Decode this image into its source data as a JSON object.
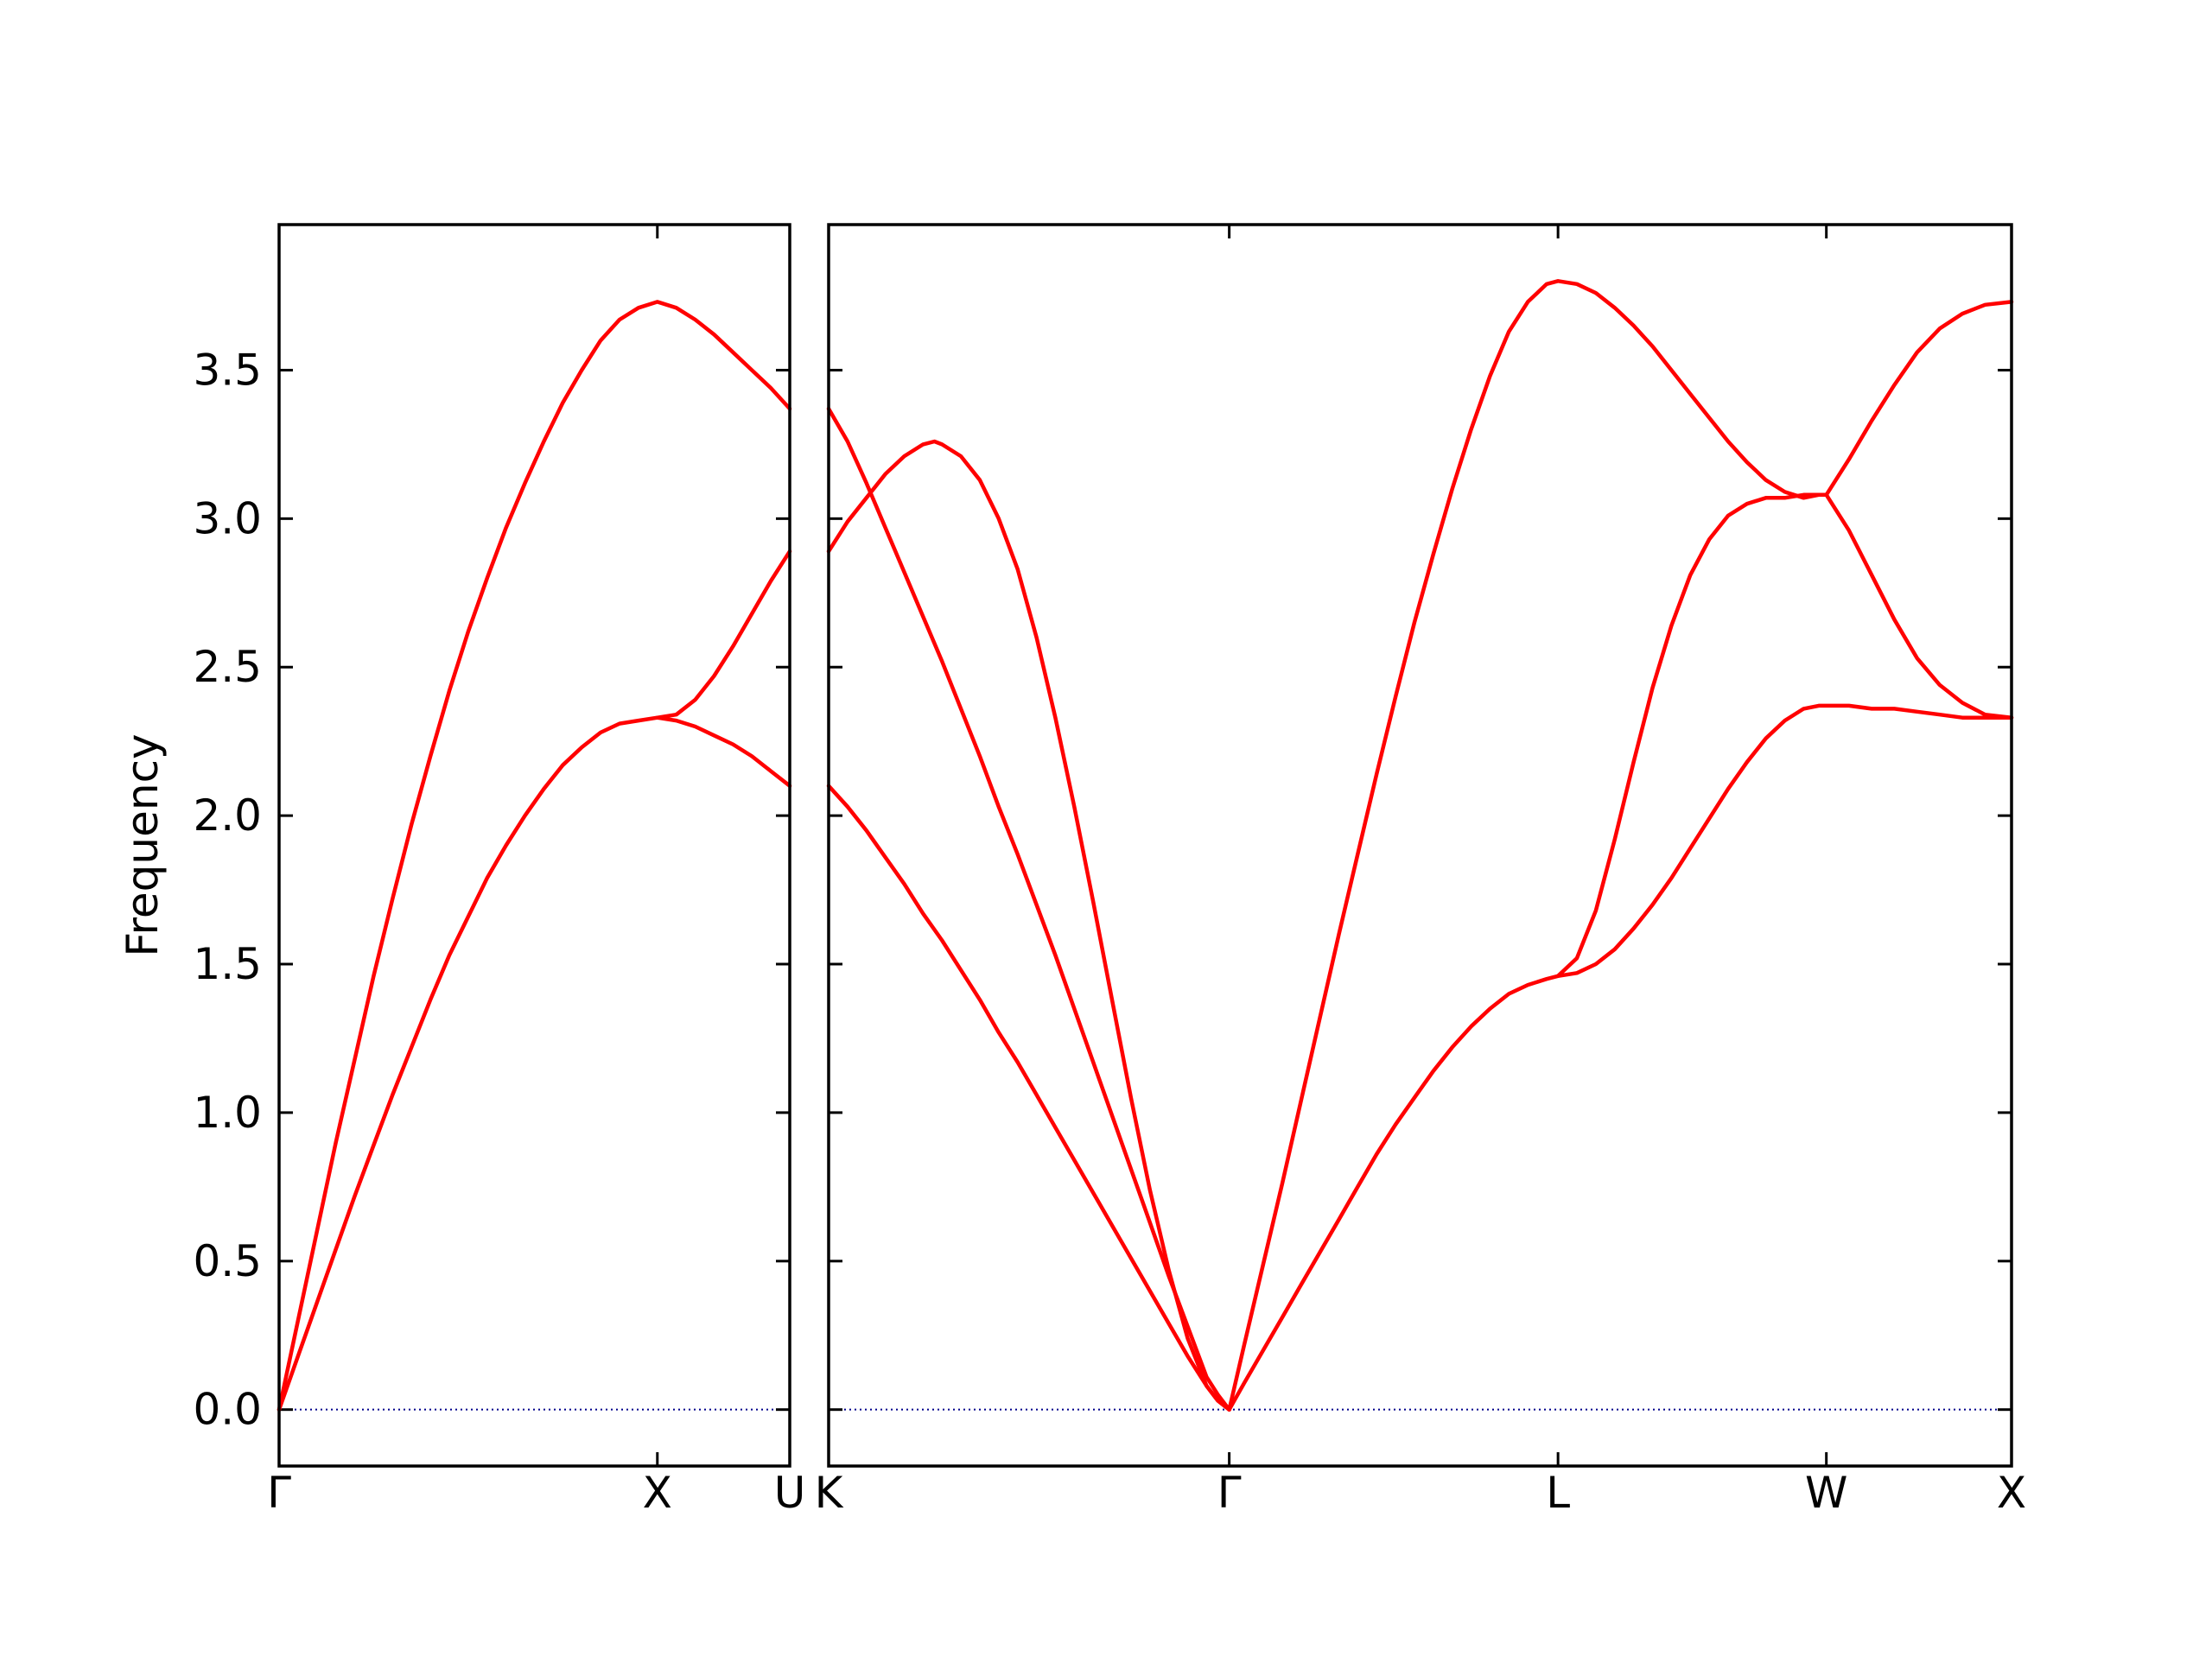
{
  "chart_data": {
    "type": "line",
    "ylabel": "Frequency",
    "ylim": [
      -0.19,
      3.99
    ],
    "yticks": [
      0.0,
      0.5,
      1.0,
      1.5,
      2.0,
      2.5,
      3.0,
      3.5
    ],
    "ytick_labels": [
      "0.0",
      "0.5",
      "1.0",
      "1.5",
      "2.0",
      "2.5",
      "3.0",
      "3.5"
    ],
    "grid": false,
    "line_color": "#ff0000",
    "zero_line_color": "#00008b",
    "panels": [
      {
        "xlim": [
          0,
          1.35
        ],
        "xticks": [
          0,
          1.0,
          1.35
        ],
        "xtick_labels": [
          "Γ",
          "X",
          "U"
        ],
        "series": [
          {
            "x": [
              0,
              0.05,
              0.1,
              0.15,
              0.2,
              0.25,
              0.3,
              0.35,
              0.4,
              0.45,
              0.5,
              0.55,
              0.6,
              0.65,
              0.7,
              0.75,
              0.8,
              0.85,
              0.9,
              0.95,
              1.0,
              1.05,
              1.1,
              1.15,
              1.2,
              1.25,
              1.3,
              1.35
            ],
            "y": [
              0,
              0.3,
              0.6,
              0.9,
              1.18,
              1.46,
              1.72,
              1.97,
              2.2,
              2.42,
              2.62,
              2.8,
              2.97,
              3.12,
              3.26,
              3.39,
              3.5,
              3.6,
              3.67,
              3.71,
              3.73,
              3.71,
              3.67,
              3.62,
              3.56,
              3.5,
              3.44,
              3.37
            ]
          },
          {
            "x": [
              0,
              0.05,
              0.1,
              0.15,
              0.2,
              0.25,
              0.3,
              0.35,
              0.4,
              0.45,
              0.5,
              0.55,
              0.6,
              0.65,
              0.7,
              0.75,
              0.8,
              0.85,
              0.9,
              0.95,
              1.0,
              1.05,
              1.1,
              1.15,
              1.2,
              1.25,
              1.3,
              1.35
            ],
            "y": [
              0,
              0.18,
              0.36,
              0.54,
              0.72,
              0.89,
              1.06,
              1.22,
              1.38,
              1.53,
              1.66,
              1.79,
              1.9,
              2.0,
              2.09,
              2.17,
              2.23,
              2.28,
              2.31,
              2.32,
              2.33,
              2.32,
              2.3,
              2.27,
              2.24,
              2.2,
              2.15,
              2.1
            ]
          },
          {
            "x": [
              1.0,
              1.05,
              1.1,
              1.15,
              1.2,
              1.25,
              1.3,
              1.35
            ],
            "y": [
              2.33,
              2.34,
              2.39,
              2.47,
              2.57,
              2.68,
              2.79,
              2.89
            ]
          }
        ]
      },
      {
        "xlim": [
          0,
          3.13
        ],
        "xticks": [
          0,
          1.06,
          1.93,
          2.64,
          3.13
        ],
        "xtick_labels": [
          "K",
          "Γ",
          "L",
          "W",
          "X"
        ],
        "series": [
          {
            "x": [
              0,
              0.05,
              0.1,
              0.15,
              0.2,
              0.25,
              0.3,
              0.35,
              0.4,
              0.45,
              0.5,
              0.55,
              0.6,
              0.65,
              0.7,
              0.75,
              0.8,
              0.85,
              0.9,
              0.95,
              1.0,
              1.03,
              1.06
            ],
            "y": [
              3.37,
              3.26,
              3.12,
              2.97,
              2.82,
              2.67,
              2.52,
              2.36,
              2.2,
              2.03,
              1.87,
              1.7,
              1.53,
              1.35,
              1.17,
              0.99,
              0.81,
              0.63,
              0.45,
              0.28,
              0.11,
              0.05,
              0
            ]
          },
          {
            "x": [
              0,
              0.05,
              0.1,
              0.15,
              0.2,
              0.25,
              0.28,
              0.3,
              0.35,
              0.4,
              0.45,
              0.5,
              0.55,
              0.6,
              0.65,
              0.7,
              0.75,
              0.8,
              0.85,
              0.9,
              0.95,
              1.0,
              1.03,
              1.06
            ],
            "y": [
              2.89,
              2.99,
              3.07,
              3.15,
              3.21,
              3.25,
              3.26,
              3.25,
              3.21,
              3.13,
              3.0,
              2.83,
              2.6,
              2.33,
              2.03,
              1.71,
              1.38,
              1.05,
              0.74,
              0.47,
              0.24,
              0.08,
              0.03,
              0
            ]
          },
          {
            "x": [
              0,
              0.05,
              0.1,
              0.15,
              0.2,
              0.25,
              0.3,
              0.35,
              0.4,
              0.45,
              0.5,
              0.55,
              0.6,
              0.65,
              0.7,
              0.75,
              0.8,
              0.85,
              0.9,
              0.95,
              1.0,
              1.03,
              1.06
            ],
            "y": [
              2.1,
              2.03,
              1.95,
              1.86,
              1.77,
              1.67,
              1.58,
              1.48,
              1.38,
              1.27,
              1.17,
              1.06,
              0.95,
              0.84,
              0.73,
              0.62,
              0.51,
              0.4,
              0.29,
              0.18,
              0.08,
              0.03,
              0
            ]
          },
          {
            "x": [
              1.06,
              1.1,
              1.15,
              1.2,
              1.25,
              1.3,
              1.35,
              1.4,
              1.45,
              1.5,
              1.55,
              1.6,
              1.65,
              1.7,
              1.75,
              1.8,
              1.85,
              1.9,
              1.93,
              1.98,
              2.03,
              2.08,
              2.13,
              2.18,
              2.23,
              2.28,
              2.33,
              2.38,
              2.43,
              2.48,
              2.53,
              2.58,
              2.62,
              2.64,
              2.7,
              2.76,
              2.82,
              2.88,
              2.94,
              3.0,
              3.06,
              3.13
            ],
            "y": [
              0,
              0.22,
              0.49,
              0.76,
              1.04,
              1.32,
              1.6,
              1.87,
              2.14,
              2.4,
              2.65,
              2.88,
              3.1,
              3.3,
              3.48,
              3.63,
              3.73,
              3.79,
              3.8,
              3.79,
              3.76,
              3.71,
              3.65,
              3.58,
              3.5,
              3.42,
              3.34,
              3.26,
              3.19,
              3.13,
              3.09,
              3.07,
              3.08,
              3.08,
              3.2,
              3.33,
              3.45,
              3.56,
              3.64,
              3.69,
              3.72,
              3.73
            ]
          },
          {
            "x": [
              1.06,
              1.1,
              1.15,
              1.2,
              1.25,
              1.3,
              1.35,
              1.4,
              1.45,
              1.5,
              1.55,
              1.6,
              1.65,
              1.7,
              1.75,
              1.8,
              1.85,
              1.9,
              1.93,
              1.98,
              2.03,
              2.08,
              2.13,
              2.18,
              2.23,
              2.28,
              2.33,
              2.38,
              2.43,
              2.48,
              2.53,
              2.58,
              2.62,
              2.64,
              2.7,
              2.76,
              2.82,
              2.88,
              2.94,
              3.0,
              3.06,
              3.13
            ],
            "y": [
              0,
              0.09,
              0.2,
              0.31,
              0.42,
              0.53,
              0.64,
              0.75,
              0.86,
              0.96,
              1.05,
              1.14,
              1.22,
              1.29,
              1.35,
              1.4,
              1.43,
              1.45,
              1.46,
              1.47,
              1.5,
              1.55,
              1.62,
              1.7,
              1.79,
              1.89,
              1.99,
              2.09,
              2.18,
              2.26,
              2.32,
              2.36,
              2.37,
              2.37,
              2.37,
              2.36,
              2.36,
              2.35,
              2.34,
              2.33,
              2.33,
              2.33
            ]
          },
          {
            "x": [
              1.93,
              1.98,
              2.03,
              2.08,
              2.13,
              2.18,
              2.23,
              2.28,
              2.33,
              2.38,
              2.43,
              2.48,
              2.53,
              2.58,
              2.62,
              2.64,
              2.7,
              2.76,
              2.82,
              2.88,
              2.94,
              3.0,
              3.06,
              3.13
            ],
            "y": [
              1.46,
              1.52,
              1.68,
              1.92,
              2.18,
              2.43,
              2.64,
              2.81,
              2.93,
              3.01,
              3.05,
              3.07,
              3.07,
              3.08,
              3.08,
              3.08,
              2.96,
              2.81,
              2.66,
              2.53,
              2.44,
              2.38,
              2.34,
              2.33
            ]
          }
        ]
      }
    ]
  }
}
